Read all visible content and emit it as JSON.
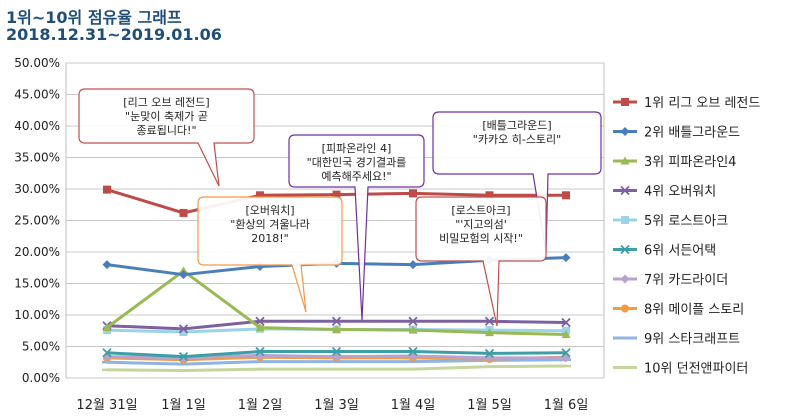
{
  "header": {
    "title": "1위~10위 점유율 그래프",
    "subtitle": "2018.12.31~2019.01.06"
  },
  "chart_data": {
    "type": "line",
    "title": "1위~10위 점유율 그래프",
    "subtitle": "2018.12.31~2019.01.06",
    "categories": [
      "12월 31일",
      "1월 1일",
      "1월 2일",
      "1월 3일",
      "1월 4일",
      "1월 5일",
      "1월 6일"
    ],
    "ylim": [
      0,
      50
    ],
    "yticks": [
      "0.00%",
      "5.00%",
      "10.00%",
      "15.00%",
      "20.00%",
      "25.00%",
      "30.00%",
      "35.00%",
      "40.00%",
      "45.00%",
      "50.00%"
    ],
    "grid": true,
    "legend_position": "right",
    "series": [
      {
        "name": "1위 리그 오브 레전드",
        "color": "#be4b48",
        "marker": "square",
        "values": [
          29.9,
          26.2,
          29.0,
          29.1,
          29.3,
          29.0,
          29.0
        ]
      },
      {
        "name": "2위 배틀그라운드",
        "color": "#4a7ebb",
        "marker": "diamond",
        "values": [
          18.0,
          16.4,
          17.7,
          18.2,
          18.0,
          18.7,
          19.1
        ]
      },
      {
        "name": "3위 피파온라인4",
        "color": "#98b954",
        "marker": "triangle",
        "values": [
          8.0,
          17.0,
          8.0,
          7.7,
          7.6,
          7.2,
          6.9
        ]
      },
      {
        "name": "4위 오버워치",
        "color": "#7d60a0",
        "marker": "x",
        "values": [
          8.3,
          7.8,
          9.0,
          9.0,
          9.0,
          9.0,
          8.8
        ]
      },
      {
        "name": "5위 로스트아크",
        "color": "#9bd3e8",
        "marker": "square",
        "values": [
          7.6,
          7.3,
          7.8,
          7.7,
          7.7,
          7.6,
          7.5
        ]
      },
      {
        "name": "6위 서든어택",
        "color": "#3d9ea8",
        "marker": "x",
        "values": [
          4.0,
          3.4,
          4.2,
          4.2,
          4.2,
          3.9,
          4.0
        ]
      },
      {
        "name": "7위 카드라이더",
        "color": "#b7a3d0",
        "marker": "diamond",
        "values": [
          3.4,
          3.2,
          3.6,
          3.4,
          3.5,
          3.2,
          3.2
        ]
      },
      {
        "name": "8위 메이플 스토리",
        "color": "#f29b44",
        "marker": "circle",
        "values": [
          3.2,
          2.9,
          3.3,
          3.2,
          3.2,
          3.0,
          3.3
        ]
      },
      {
        "name": "9위 스타크래프트",
        "color": "#8eb4e3",
        "marker": "dash",
        "values": [
          2.5,
          2.2,
          2.6,
          2.6,
          2.6,
          2.8,
          2.9
        ]
      },
      {
        "name": "10위 던전앤파이터",
        "color": "#c4d69b",
        "marker": "dash",
        "values": [
          1.3,
          1.2,
          1.4,
          1.4,
          1.4,
          1.8,
          1.9
        ]
      }
    ],
    "annotations": [
      {
        "title": "[리그 오브 레전드]",
        "lines": [
          "\"눈맞이 축제가 곧",
          "종료됩니다!\""
        ],
        "color": "#c0504d"
      },
      {
        "title": "[피파온라인 4]",
        "lines": [
          "\"대한민국 경기결과를",
          "예측해주세요!\""
        ],
        "color": "#7030a0"
      },
      {
        "title": "[배틀그라운드]",
        "lines": [
          "\"카카오 히-스토리\""
        ],
        "color": "#7030a0"
      },
      {
        "title": "[오버워치]",
        "lines": [
          "\"환상의 겨울나라",
          "2018!\""
        ],
        "color": "#f79646"
      },
      {
        "title": "[로스트아크]",
        "lines": [
          "\"'지고의섬'",
          "비밀모험의 시작!\""
        ],
        "color": "#c0504d"
      }
    ]
  }
}
